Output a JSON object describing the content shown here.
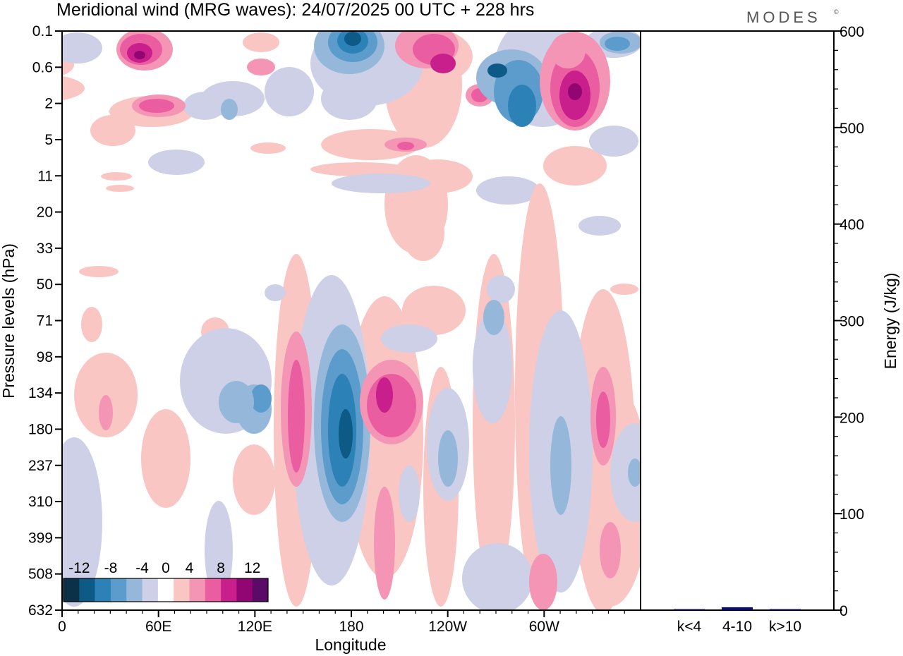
{
  "title": "Meridional wind (MRG waves):  24/07/2025  00 UTC  + 228 hrs",
  "logo_text": "MODES",
  "logo_mark": "©",
  "chart_data": [
    {
      "type": "heatmap",
      "title": "Meridional wind (MRG waves):  24/07/2025  00 UTC  + 228 hrs",
      "xlabel": "Longitude",
      "ylabel": "Pressure levels (hPa)",
      "x_ticks": [
        "0",
        "60E",
        "120E",
        "180",
        "120W",
        "60W"
      ],
      "x_tick_degrees": [
        0,
        60,
        120,
        180,
        240,
        300
      ],
      "xlim": [
        0,
        360
      ],
      "y_ticks": [
        "0.1",
        "0.6",
        "2",
        "5",
        "11",
        "20",
        "33",
        "50",
        "71",
        "98",
        "134",
        "180",
        "237",
        "310",
        "399",
        "508",
        "632"
      ],
      "colorbar": {
        "labels": [
          "-12",
          "-8",
          "-4",
          "0",
          "4",
          "8",
          "12"
        ],
        "levels": [
          -14,
          -12,
          -10,
          -8,
          -6,
          -4,
          -2,
          2,
          4,
          6,
          8,
          10,
          12,
          14
        ],
        "colors": [
          "#0b3148",
          "#0d5a86",
          "#2c82b6",
          "#5c9ccc",
          "#95b8da",
          "#cdd0e6",
          "#ffffff",
          "#f9c6c3",
          "#f495b5",
          "#ea5ea1",
          "#c81f8c",
          "#920674",
          "#5a0a67"
        ]
      },
      "features": [
        {
          "type": "positive",
          "lon": 40,
          "level": 0.6,
          "value": 12
        },
        {
          "type": "positive",
          "lon": 50,
          "level": 2,
          "value": 9
        },
        {
          "type": "negative",
          "lon": 180,
          "level": 0.1,
          "value": -13
        },
        {
          "type": "positive",
          "lon": 235,
          "level": 0.6,
          "value": 11
        },
        {
          "type": "negative",
          "lon": 272,
          "level": 2,
          "value": -13
        },
        {
          "type": "positive",
          "lon": 322,
          "level": 2,
          "value": 12
        },
        {
          "type": "negative",
          "lon": 345,
          "level": 0.1,
          "value": -10
        },
        {
          "type": "positive",
          "lon": 145,
          "level": 237,
          "value": 7
        },
        {
          "type": "negative",
          "lon": 178,
          "level": 180,
          "value": -13
        },
        {
          "type": "positive",
          "lon": 205,
          "level": 134,
          "value": 10
        },
        {
          "type": "negative",
          "lon": 125,
          "level": 134,
          "value": -8
        },
        {
          "type": "positive",
          "lon": 335,
          "level": 180,
          "value": 8
        },
        {
          "type": "negative",
          "lon": 310,
          "level": 237,
          "value": -7
        }
      ]
    },
    {
      "type": "bar",
      "categories": [
        "k<4",
        "4-10",
        "k>10"
      ],
      "values": [
        0.5,
        3,
        0.3
      ],
      "ylabel": "Energy (J/kg)",
      "ylim": [
        0,
        600
      ],
      "y_ticks": [
        "0",
        "100",
        "200",
        "300",
        "400",
        "500",
        "600"
      ],
      "bar_color": "#0a0a6e"
    }
  ]
}
